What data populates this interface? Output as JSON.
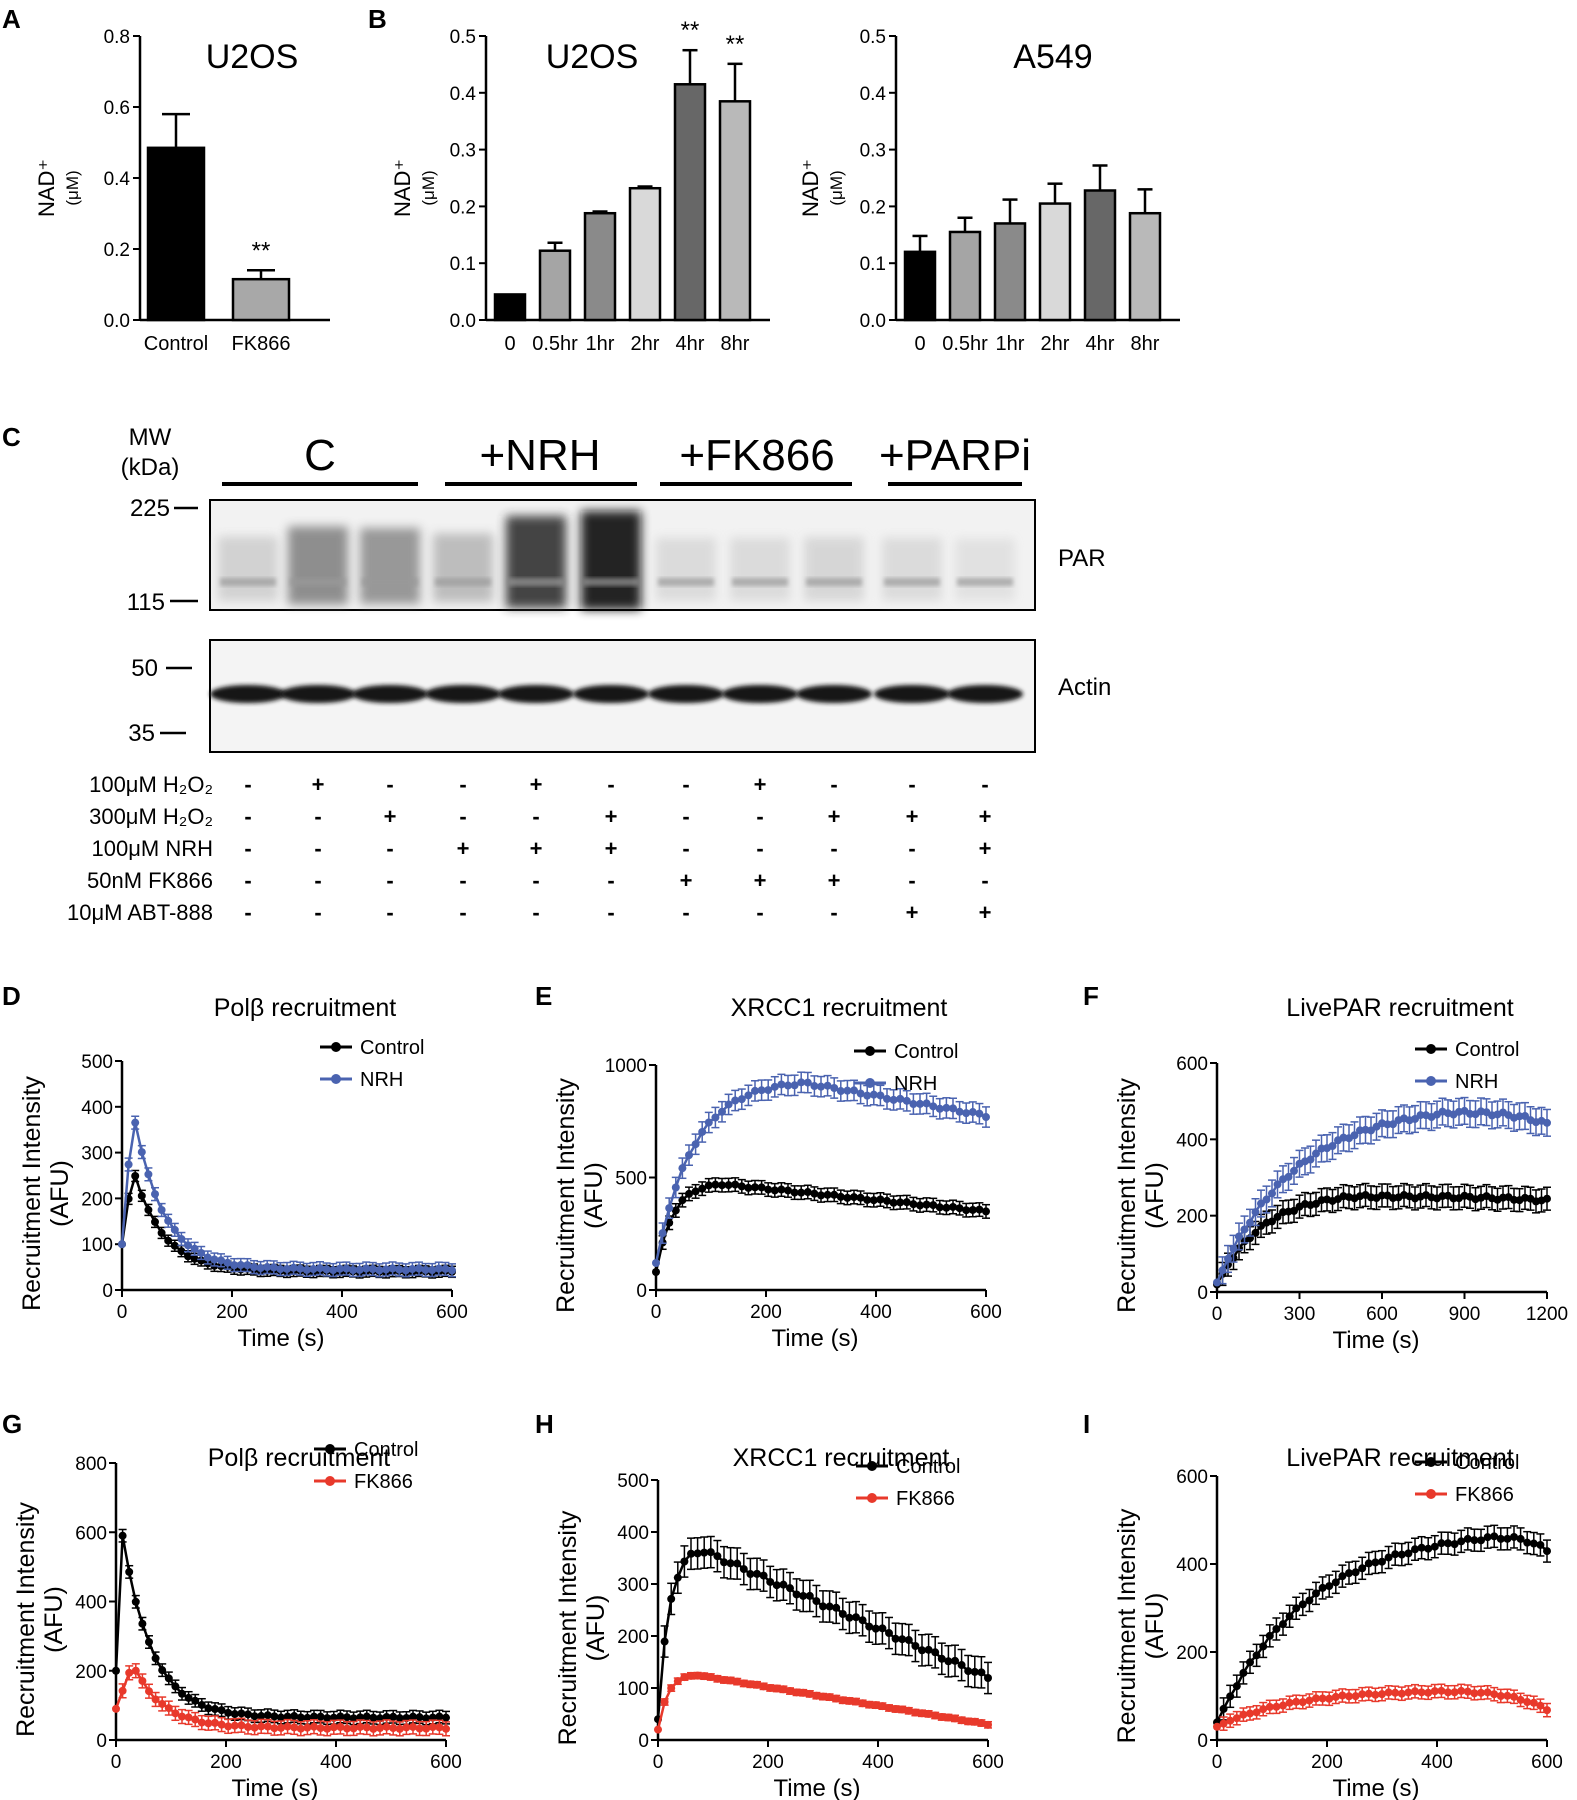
{
  "panel_letters": [
    "A",
    "B",
    "C",
    "D",
    "E",
    "F",
    "G",
    "H",
    "I"
  ],
  "chart_data": [
    {
      "id": "A",
      "type": "bar",
      "title": "U2OS",
      "ylabel": "NAD⁺",
      "yunit": "(μM)",
      "ylim": [
        0,
        0.8
      ],
      "yticks": [
        "0.0",
        "0.2",
        "0.4",
        "0.6",
        "0.8"
      ],
      "categories": [
        "Control",
        "FK866"
      ],
      "values": [
        0.485,
        0.115
      ],
      "errors": [
        0.095,
        0.025
      ],
      "colors": [
        "#000000",
        "#a8a8a8"
      ],
      "annotations": [
        "",
        "**"
      ]
    },
    {
      "id": "B1",
      "type": "bar",
      "title": "U2OS",
      "ylabel": "NAD⁺",
      "yunit": "(μM)",
      "ylim": [
        0,
        0.5
      ],
      "yticks": [
        "0.0",
        "0.1",
        "0.2",
        "0.3",
        "0.4",
        "0.5"
      ],
      "categories": [
        "0",
        "0.5hr",
        "1hr",
        "2hr",
        "4hr",
        "8hr"
      ],
      "values": [
        0.045,
        0.122,
        0.188,
        0.232,
        0.415,
        0.385
      ],
      "errors": [
        0.0,
        0.014,
        0.003,
        0.003,
        0.06,
        0.066
      ],
      "colors": [
        "#000000",
        "#a5a5a5",
        "#8a8a8a",
        "#d9d9d9",
        "#676767",
        "#b9b9b9"
      ],
      "annotations": [
        "",
        "",
        "",
        "",
        "**",
        "**"
      ]
    },
    {
      "id": "B2",
      "type": "bar",
      "title": "A549",
      "ylabel": "NAD⁺",
      "yunit": "(μM)",
      "ylim": [
        0,
        0.5
      ],
      "yticks": [
        "0.0",
        "0.1",
        "0.2",
        "0.3",
        "0.4",
        "0.5"
      ],
      "categories": [
        "0",
        "0.5hr",
        "1hr",
        "2hr",
        "4hr",
        "8hr"
      ],
      "values": [
        0.12,
        0.155,
        0.17,
        0.205,
        0.228,
        0.188
      ],
      "errors": [
        0.028,
        0.025,
        0.042,
        0.035,
        0.044,
        0.042
      ],
      "colors": [
        "#000000",
        "#a5a5a5",
        "#8a8a8a",
        "#d9d9d9",
        "#676767",
        "#b9b9b9"
      ],
      "annotations": [
        "",
        "",
        "",
        "",
        "",
        ""
      ]
    },
    {
      "id": "D",
      "type": "line",
      "title": "Polβ recruitment",
      "xlabel": "Time (s)",
      "ylabel": "Recruitment Intensity",
      "yunit": "(AFU)",
      "xlim": [
        0,
        600
      ],
      "ylim": [
        0,
        500
      ],
      "xticks": [
        0,
        200,
        400,
        600
      ],
      "yticks": [
        0,
        100,
        200,
        300,
        400,
        500
      ],
      "legend": "top-right",
      "series": [
        {
          "name": "Control",
          "color": "#000000",
          "shape": "decay",
          "peak": 265,
          "peak_t": 20,
          "start": 100,
          "end": 40,
          "err": 12
        },
        {
          "name": "NRH",
          "color": "#4a63b0",
          "shape": "decay",
          "peak": 390,
          "peak_t": 20,
          "start": 100,
          "end": 45,
          "err": 14
        }
      ]
    },
    {
      "id": "E",
      "type": "line",
      "title": "XRCC1 recruitment",
      "xlabel": "Time (s)",
      "ylabel": "Recruitment Intensity",
      "yunit": "(AFU)",
      "xlim": [
        0,
        600
      ],
      "ylim": [
        0,
        1000
      ],
      "xticks": [
        0,
        200,
        400,
        600
      ],
      "yticks": [
        0,
        500,
        1000
      ],
      "legend": "top-right",
      "series": [
        {
          "name": "Control",
          "color": "#000000",
          "shape": "rise-fall",
          "peak": 470,
          "peak_t": 120,
          "start": 80,
          "end": 350,
          "err": 30
        },
        {
          "name": "NRH",
          "color": "#4a63b0",
          "shape": "rise-fall",
          "peak": 920,
          "peak_t": 270,
          "start": 120,
          "end": 775,
          "err": 45
        }
      ]
    },
    {
      "id": "F",
      "type": "line",
      "title": "LivePAR recruitment",
      "xlabel": "Time (s)",
      "ylabel": "Recruitment Intensity",
      "yunit": "(AFU)",
      "xlim": [
        0,
        1200
      ],
      "ylim": [
        0,
        600
      ],
      "xticks": [
        0,
        300,
        600,
        900,
        1200
      ],
      "yticks": [
        0,
        200,
        400,
        600
      ],
      "legend": "top-right",
      "series": [
        {
          "name": "Control",
          "color": "#000000",
          "shape": "plateau",
          "peak": 250,
          "peak_t": 500,
          "start": 20,
          "end": 240,
          "err": 30
        },
        {
          "name": "NRH",
          "color": "#4a63b0",
          "shape": "plateau",
          "peak": 470,
          "peak_t": 850,
          "start": 25,
          "end": 440,
          "err": 35
        }
      ]
    },
    {
      "id": "G",
      "type": "line",
      "title": "Polβ recruitment",
      "xlabel": "Time (s)",
      "ylabel": "Recruitment Intensity",
      "yunit": "(AFU)",
      "xlim": [
        0,
        600
      ],
      "ylim": [
        0,
        800
      ],
      "xticks": [
        0,
        200,
        400,
        600
      ],
      "yticks": [
        0,
        200,
        400,
        600,
        800
      ],
      "legend": "top-right",
      "series": [
        {
          "name": "Control",
          "color": "#000000",
          "shape": "decay",
          "peak": 590,
          "peak_t": 12,
          "start": 200,
          "end": 65,
          "err": 18
        },
        {
          "name": "FK866",
          "color": "#e8392b",
          "shape": "decay",
          "peak": 220,
          "peak_t": 30,
          "start": 90,
          "end": 35,
          "err": 20
        }
      ]
    },
    {
      "id": "H",
      "type": "line",
      "title": "XRCC1 recruitment",
      "xlabel": "Time (s)",
      "ylabel": "Recruitment Intensity",
      "yunit": "(AFU)",
      "xlim": [
        0,
        600
      ],
      "ylim": [
        0,
        500
      ],
      "xticks": [
        0,
        200,
        400,
        600
      ],
      "yticks": [
        0,
        100,
        200,
        300,
        400,
        500
      ],
      "legend": "top-right",
      "series": [
        {
          "name": "Control",
          "color": "#000000",
          "shape": "rise-fall",
          "peak": 365,
          "peak_t": 80,
          "start": 40,
          "end": 120,
          "err": 30
        },
        {
          "name": "FK866",
          "color": "#e8392b",
          "shape": "rise-fall",
          "peak": 125,
          "peak_t": 70,
          "start": 20,
          "end": 30,
          "err": 6
        }
      ]
    },
    {
      "id": "I",
      "type": "line",
      "title": "LivePAR recruitment",
      "xlabel": "Time (s)",
      "ylabel": "Recruitment Intensity",
      "yunit": "(AFU)",
      "xlim": [
        0,
        600
      ],
      "ylim": [
        0,
        600
      ],
      "xticks": [
        0,
        200,
        400,
        600
      ],
      "yticks": [
        0,
        200,
        400,
        600
      ],
      "legend": "top-right",
      "series": [
        {
          "name": "Control",
          "color": "#000000",
          "shape": "plateau",
          "peak": 460,
          "peak_t": 500,
          "start": 40,
          "end": 430,
          "err": 25
        },
        {
          "name": "FK866",
          "color": "#e8392b",
          "shape": "plateau",
          "peak": 110,
          "peak_t": 400,
          "start": 30,
          "end": 70,
          "err": 15
        }
      ]
    }
  ],
  "western": {
    "mw_label": "MW",
    "mw_unit": "(kDa)",
    "groups": [
      "C",
      "+NRH",
      "+FK866",
      "+PARPi"
    ],
    "markers": [
      "225",
      "115",
      "50",
      "35"
    ],
    "blot_labels": [
      "PAR",
      "Actin"
    ],
    "par_intensity": [
      0.12,
      0.45,
      0.4,
      0.22,
      0.8,
      0.97,
      0.08,
      0.08,
      0.1,
      0.08,
      0.05
    ],
    "treatments": [
      {
        "label": "100μM H₂O₂",
        "signs": [
          "-",
          "+",
          "-",
          "-",
          "+",
          "-",
          "-",
          "+",
          "-",
          "-",
          "-"
        ]
      },
      {
        "label": "300μM H₂O₂",
        "signs": [
          "-",
          "-",
          "+",
          "-",
          "-",
          "+",
          "-",
          "-",
          "+",
          "+",
          "+"
        ]
      },
      {
        "label": "100μM NRH",
        "signs": [
          "-",
          "-",
          "-",
          "+",
          "+",
          "+",
          "-",
          "-",
          "-",
          "-",
          "+"
        ]
      },
      {
        "label": "50nM FK866",
        "signs": [
          "-",
          "-",
          "-",
          "-",
          "-",
          "-",
          "+",
          "+",
          "+",
          "-",
          "-"
        ]
      },
      {
        "label": "10μM ABT-888",
        "signs": [
          "-",
          "-",
          "-",
          "-",
          "-",
          "-",
          "-",
          "-",
          "-",
          "+",
          "+"
        ]
      }
    ]
  }
}
